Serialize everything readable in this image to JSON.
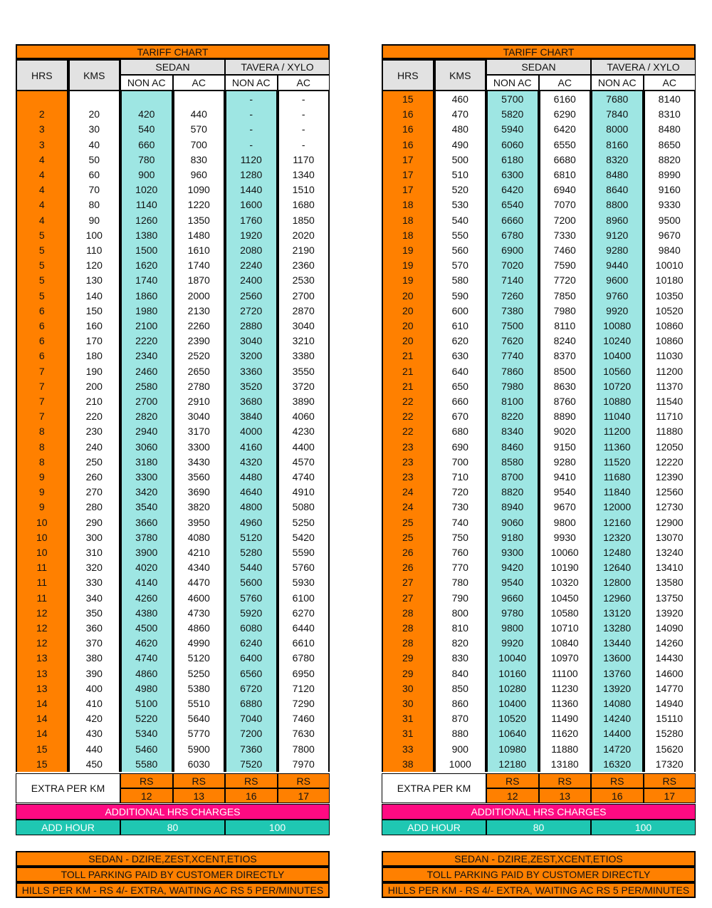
{
  "tables": [
    {
      "title": "TARIFF CHART",
      "headers": [
        "HRS",
        "KMS"
      ],
      "groups": [
        "SEDAN",
        "TAVERA / XYLO"
      ],
      "sub_headers": [
        "NON AC",
        "AC",
        "NON AC",
        "AC"
      ],
      "rows": [
        [
          null,
          null,
          null,
          null,
          "-",
          "-"
        ],
        [
          2,
          20,
          420,
          440,
          "-",
          "-"
        ],
        [
          3,
          30,
          540,
          570,
          "-",
          "-"
        ],
        [
          3,
          40,
          660,
          700,
          "-",
          "-"
        ],
        [
          4,
          50,
          780,
          830,
          1120,
          1170
        ],
        [
          4,
          60,
          900,
          960,
          1280,
          1340
        ],
        [
          4,
          70,
          1020,
          1090,
          1440,
          1510
        ],
        [
          4,
          80,
          1140,
          1220,
          1600,
          1680
        ],
        [
          4,
          90,
          1260,
          1350,
          1760,
          1850
        ],
        [
          5,
          100,
          1380,
          1480,
          1920,
          2020
        ],
        [
          5,
          110,
          1500,
          1610,
          2080,
          2190
        ],
        [
          5,
          120,
          1620,
          1740,
          2240,
          2360
        ],
        [
          5,
          130,
          1740,
          1870,
          2400,
          2530
        ],
        [
          5,
          140,
          1860,
          2000,
          2560,
          2700
        ],
        [
          6,
          150,
          1980,
          2130,
          2720,
          2870
        ],
        [
          6,
          160,
          2100,
          2260,
          2880,
          3040
        ],
        [
          6,
          170,
          2220,
          2390,
          3040,
          3210
        ],
        [
          6,
          180,
          2340,
          2520,
          3200,
          3380
        ],
        [
          7,
          190,
          2460,
          2650,
          3360,
          3550
        ],
        [
          7,
          200,
          2580,
          2780,
          3520,
          3720
        ],
        [
          7,
          210,
          2700,
          2910,
          3680,
          3890
        ],
        [
          7,
          220,
          2820,
          3040,
          3840,
          4060
        ],
        [
          8,
          230,
          2940,
          3170,
          4000,
          4230
        ],
        [
          8,
          240,
          3060,
          3300,
          4160,
          4400
        ],
        [
          8,
          250,
          3180,
          3430,
          4320,
          4570
        ],
        [
          9,
          260,
          3300,
          3560,
          4480,
          4740
        ],
        [
          9,
          270,
          3420,
          3690,
          4640,
          4910
        ],
        [
          9,
          280,
          3540,
          3820,
          4800,
          5080
        ],
        [
          10,
          290,
          3660,
          3950,
          4960,
          5250
        ],
        [
          10,
          300,
          3780,
          4080,
          5120,
          5420
        ],
        [
          10,
          310,
          3900,
          4210,
          5280,
          5590
        ],
        [
          11,
          320,
          4020,
          4340,
          5440,
          5760
        ],
        [
          11,
          330,
          4140,
          4470,
          5600,
          5930
        ],
        [
          11,
          340,
          4260,
          4600,
          5760,
          6100
        ],
        [
          12,
          350,
          4380,
          4730,
          5920,
          6270
        ],
        [
          12,
          360,
          4500,
          4860,
          6080,
          6440
        ],
        [
          12,
          370,
          4620,
          4990,
          6240,
          6610
        ],
        [
          13,
          380,
          4740,
          5120,
          6400,
          6780
        ],
        [
          13,
          390,
          4860,
          5250,
          6560,
          6950
        ],
        [
          13,
          400,
          4980,
          5380,
          6720,
          7120
        ],
        [
          14,
          410,
          5100,
          5510,
          6880,
          7290
        ],
        [
          14,
          420,
          5220,
          5640,
          7040,
          7460
        ],
        [
          14,
          430,
          5340,
          5770,
          7200,
          7630
        ],
        [
          15,
          440,
          5460,
          5900,
          7360,
          7800
        ],
        [
          15,
          450,
          5580,
          6030,
          7520,
          7970
        ]
      ],
      "extra": {
        "label": "EXTRA PER KM",
        "units": [
          "RS",
          "RS",
          "RS",
          "RS"
        ],
        "values": [
          12,
          13,
          16,
          17
        ]
      },
      "additional": "ADDITIONAL HRS CHARGES",
      "add_hour": {
        "label": "ADD HOUR",
        "sedan": 80,
        "tavera": 100
      },
      "notes": [
        "SEDAN - DZIRE,ZEST,XCENT,ETIOS",
        "TOLL PARKING PAID BY CUSTOMER DIRECTLY",
        "HILLS PER KM - RS 4/- EXTRA, WAITING AC RS 5 PER/MINUTES"
      ]
    },
    {
      "title": "TARIFF CHART",
      "headers": [
        "HRS",
        "KMS"
      ],
      "groups": [
        "SEDAN",
        "TAVERA / XYLO"
      ],
      "sub_headers": [
        "NON AC",
        "AC",
        "NON AC",
        "AC"
      ],
      "rows": [
        [
          15,
          460,
          5700,
          6160,
          7680,
          8140
        ],
        [
          16,
          470,
          5820,
          6290,
          7840,
          8310
        ],
        [
          16,
          480,
          5940,
          6420,
          8000,
          8480
        ],
        [
          16,
          490,
          6060,
          6550,
          8160,
          8650
        ],
        [
          17,
          500,
          6180,
          6680,
          8320,
          8820
        ],
        [
          17,
          510,
          6300,
          6810,
          8480,
          8990
        ],
        [
          17,
          520,
          6420,
          6940,
          8640,
          9160
        ],
        [
          18,
          530,
          6540,
          7070,
          8800,
          9330
        ],
        [
          18,
          540,
          6660,
          7200,
          8960,
          9500
        ],
        [
          18,
          550,
          6780,
          7330,
          9120,
          9670
        ],
        [
          19,
          560,
          6900,
          7460,
          9280,
          9840
        ],
        [
          19,
          570,
          7020,
          7590,
          9440,
          10010
        ],
        [
          19,
          580,
          7140,
          7720,
          9600,
          10180
        ],
        [
          20,
          590,
          7260,
          7850,
          9760,
          10350
        ],
        [
          20,
          600,
          7380,
          7980,
          9920,
          10520
        ],
        [
          20,
          610,
          7500,
          8110,
          10080,
          10860
        ],
        [
          20,
          620,
          7620,
          8240,
          10240,
          10860
        ],
        [
          21,
          630,
          7740,
          8370,
          10400,
          11030
        ],
        [
          21,
          640,
          7860,
          8500,
          10560,
          11200
        ],
        [
          21,
          650,
          7980,
          8630,
          10720,
          11370
        ],
        [
          22,
          660,
          8100,
          8760,
          10880,
          11540
        ],
        [
          22,
          670,
          8220,
          8890,
          11040,
          11710
        ],
        [
          22,
          680,
          8340,
          9020,
          11200,
          11880
        ],
        [
          23,
          690,
          8460,
          9150,
          11360,
          12050
        ],
        [
          23,
          700,
          8580,
          9280,
          11520,
          12220
        ],
        [
          23,
          710,
          8700,
          9410,
          11680,
          12390
        ],
        [
          24,
          720,
          8820,
          9540,
          11840,
          12560
        ],
        [
          24,
          730,
          8940,
          9670,
          12000,
          12730
        ],
        [
          25,
          740,
          9060,
          9800,
          12160,
          12900
        ],
        [
          25,
          750,
          9180,
          9930,
          12320,
          13070
        ],
        [
          26,
          760,
          9300,
          10060,
          12480,
          13240
        ],
        [
          26,
          770,
          9420,
          10190,
          12640,
          13410
        ],
        [
          27,
          780,
          9540,
          10320,
          12800,
          13580
        ],
        [
          27,
          790,
          9660,
          10450,
          12960,
          13750
        ],
        [
          28,
          800,
          9780,
          10580,
          13120,
          13920
        ],
        [
          28,
          810,
          9800,
          10710,
          13280,
          14090
        ],
        [
          28,
          820,
          9920,
          10840,
          13440,
          14260
        ],
        [
          29,
          830,
          10040,
          10970,
          13600,
          14430
        ],
        [
          29,
          840,
          10160,
          11100,
          13760,
          14600
        ],
        [
          30,
          850,
          10280,
          11230,
          13920,
          14770
        ],
        [
          30,
          860,
          10400,
          11360,
          14080,
          14940
        ],
        [
          31,
          870,
          10520,
          11490,
          14240,
          15110
        ],
        [
          31,
          880,
          10640,
          11620,
          14400,
          15280
        ],
        [
          33,
          900,
          10980,
          11880,
          14720,
          15620
        ],
        [
          38,
          1000,
          12180,
          13180,
          16320,
          17320
        ]
      ],
      "extra": {
        "label": "EXTRA PER KM",
        "units": [
          "RS",
          "RS",
          "RS",
          "RS"
        ],
        "values": [
          12,
          13,
          16,
          17
        ]
      },
      "additional": "ADDITIONAL HRS CHARGES",
      "add_hour": {
        "label": "ADD HOUR",
        "sedan": 80,
        "tavera": 100
      },
      "notes": [
        "SEDAN - DZIRE,ZEST,XCENT,ETIOS",
        "TOLL PARKING PAID BY CUSTOMER DIRECTLY",
        "HILLS PER KM - RS 4/- EXTRA, WAITING AC RS 5 PER/MINUTES"
      ]
    }
  ]
}
